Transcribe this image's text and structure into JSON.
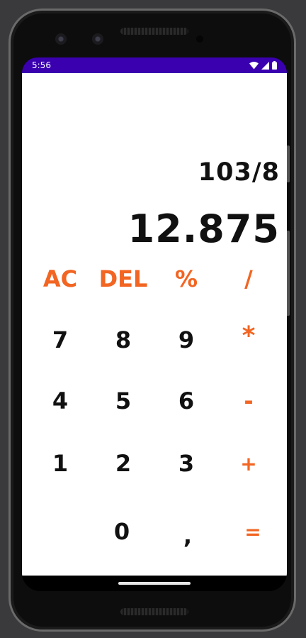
{
  "status_bar": {
    "time": "5:56",
    "icons": [
      "wifi-icon",
      "cell-signal-icon",
      "battery-icon"
    ],
    "color": "#3a00b0"
  },
  "display": {
    "expression": "103/8",
    "result": "12.875"
  },
  "keys": {
    "ac": "AC",
    "del": "DEL",
    "percent": "%",
    "divide": "/",
    "seven": "7",
    "eight": "8",
    "nine": "9",
    "multiply": "*",
    "four": "4",
    "five": "5",
    "six": "6",
    "minus": "-",
    "one": "1",
    "two": "2",
    "three": "3",
    "plus": "+",
    "zero": "0",
    "comma": ",",
    "equals": "="
  },
  "colors": {
    "operator": "#f26522",
    "digit": "#111111"
  }
}
